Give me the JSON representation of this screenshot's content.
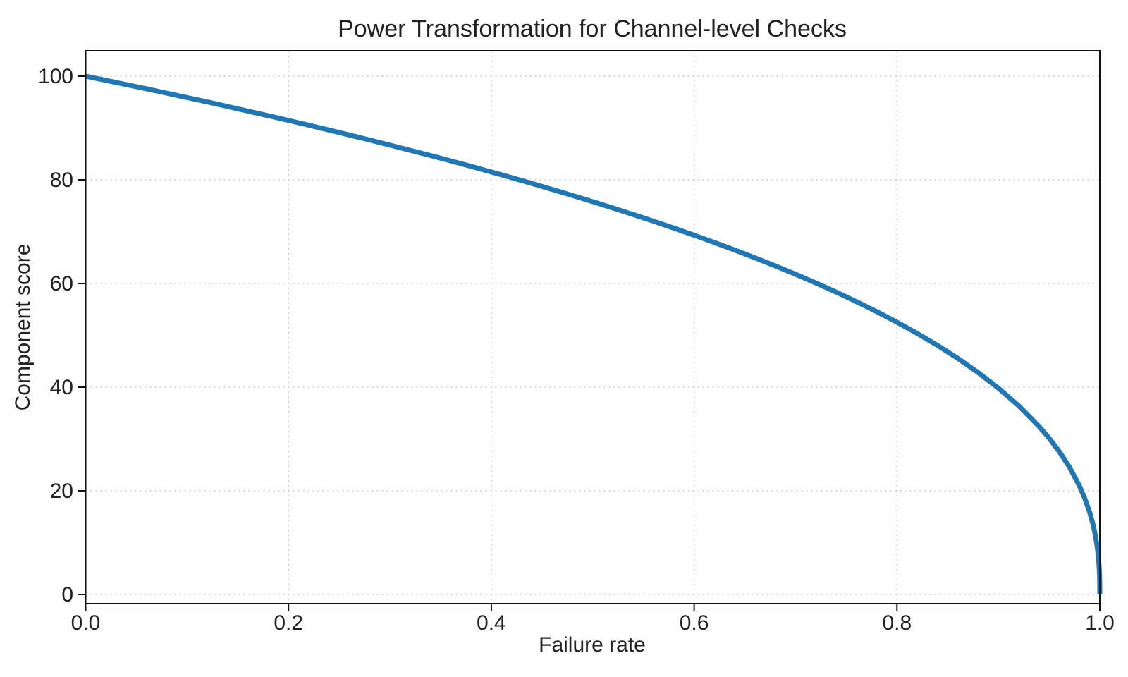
{
  "chart_data": {
    "type": "line",
    "title": "Power Transformation for Channel-level Checks",
    "xlabel": "Failure rate",
    "ylabel": "Component score",
    "xlim": [
      0.0,
      1.0
    ],
    "ylim": [
      0,
      100
    ],
    "x_tick_values": [
      0.0,
      0.2,
      0.4,
      0.6,
      0.8,
      1.0
    ],
    "x_tick_labels": [
      "0.0",
      "0.2",
      "0.4",
      "0.6",
      "0.8",
      "1.0"
    ],
    "y_tick_values": [
      0,
      20,
      40,
      60,
      80,
      100
    ],
    "y_tick_labels": [
      "0",
      "20",
      "40",
      "60",
      "80",
      "100"
    ],
    "grid": "dotted",
    "grid_color": "#c9c9c9",
    "axis_color": "#111111",
    "text_color": "#202124",
    "line_color": "#1f77b4",
    "line_width": 7,
    "legend": "none",
    "series": [
      {
        "x": [
          0.0,
          0.02,
          0.04,
          0.06,
          0.08,
          0.1,
          0.12,
          0.14,
          0.16,
          0.18,
          0.2,
          0.22,
          0.24,
          0.26,
          0.28,
          0.3,
          0.32,
          0.34,
          0.36,
          0.38,
          0.4,
          0.42,
          0.44,
          0.46,
          0.48,
          0.5,
          0.52,
          0.54,
          0.56,
          0.58,
          0.6,
          0.62,
          0.64,
          0.66,
          0.68,
          0.7,
          0.72,
          0.74,
          0.76,
          0.78,
          0.8,
          0.82,
          0.84,
          0.86,
          0.88,
          0.9,
          0.92,
          0.94,
          0.95,
          0.96,
          0.97,
          0.98,
          0.985,
          0.99,
          0.993,
          0.995,
          0.997,
          0.998,
          0.999,
          0.9995,
          0.9998,
          0.9999,
          1.0
        ],
        "y": [
          100,
          99.19,
          98.38,
          97.56,
          96.72,
          95.87,
          95.02,
          94.15,
          93.26,
          92.37,
          91.46,
          90.54,
          89.6,
          88.65,
          87.69,
          86.7,
          85.7,
          84.69,
          83.65,
          82.6,
          81.52,
          80.42,
          79.3,
          78.15,
          76.98,
          75.79,
          74.56,
          73.3,
          72.01,
          70.68,
          69.31,
          67.91,
          66.45,
          64.95,
          63.4,
          61.78,
          60.1,
          58.34,
          56.5,
          54.57,
          52.53,
          50.36,
          48.05,
          45.55,
          42.82,
          39.81,
          36.41,
          32.45,
          30.17,
          27.59,
          24.6,
          20.91,
          18.64,
          15.85,
          13.74,
          12.01,
          9.79,
          8.32,
          6.31,
          4.78,
          3.31,
          2.51,
          0
        ]
      }
    ]
  }
}
